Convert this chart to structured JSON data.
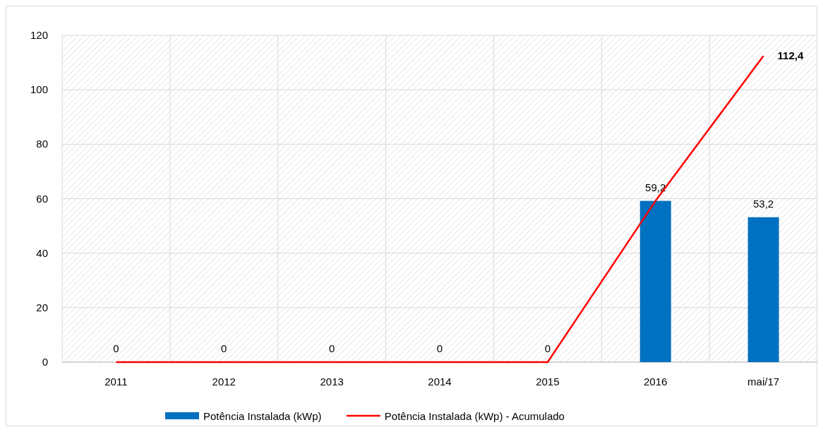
{
  "chart_data": {
    "type": "bar",
    "categories": [
      "2011",
      "2012",
      "2013",
      "2014",
      "2015",
      "2016",
      "mai/17"
    ],
    "series": [
      {
        "name": "Potência Instalada (kWp)",
        "color": "#0070c0",
        "values": [
          0,
          0,
          0,
          0,
          0,
          59.2,
          53.2
        ],
        "value_labels": [
          "0",
          "0",
          "0",
          "0",
          "0",
          "59,2",
          "53,2"
        ]
      },
      {
        "name": "Potência Instalada (kWp) - Acumulado",
        "type": "line",
        "color": "#ff0000",
        "values": [
          0,
          0,
          0,
          0,
          0,
          59.2,
          112.4
        ],
        "value_labels": [
          null,
          null,
          null,
          null,
          null,
          null,
          "112,4"
        ]
      }
    ],
    "ylim": [
      0,
      120
    ],
    "yticks": [
      0,
      20,
      40,
      60,
      80,
      100,
      120
    ],
    "grid": true,
    "legend": "bottom",
    "marker": "none"
  }
}
